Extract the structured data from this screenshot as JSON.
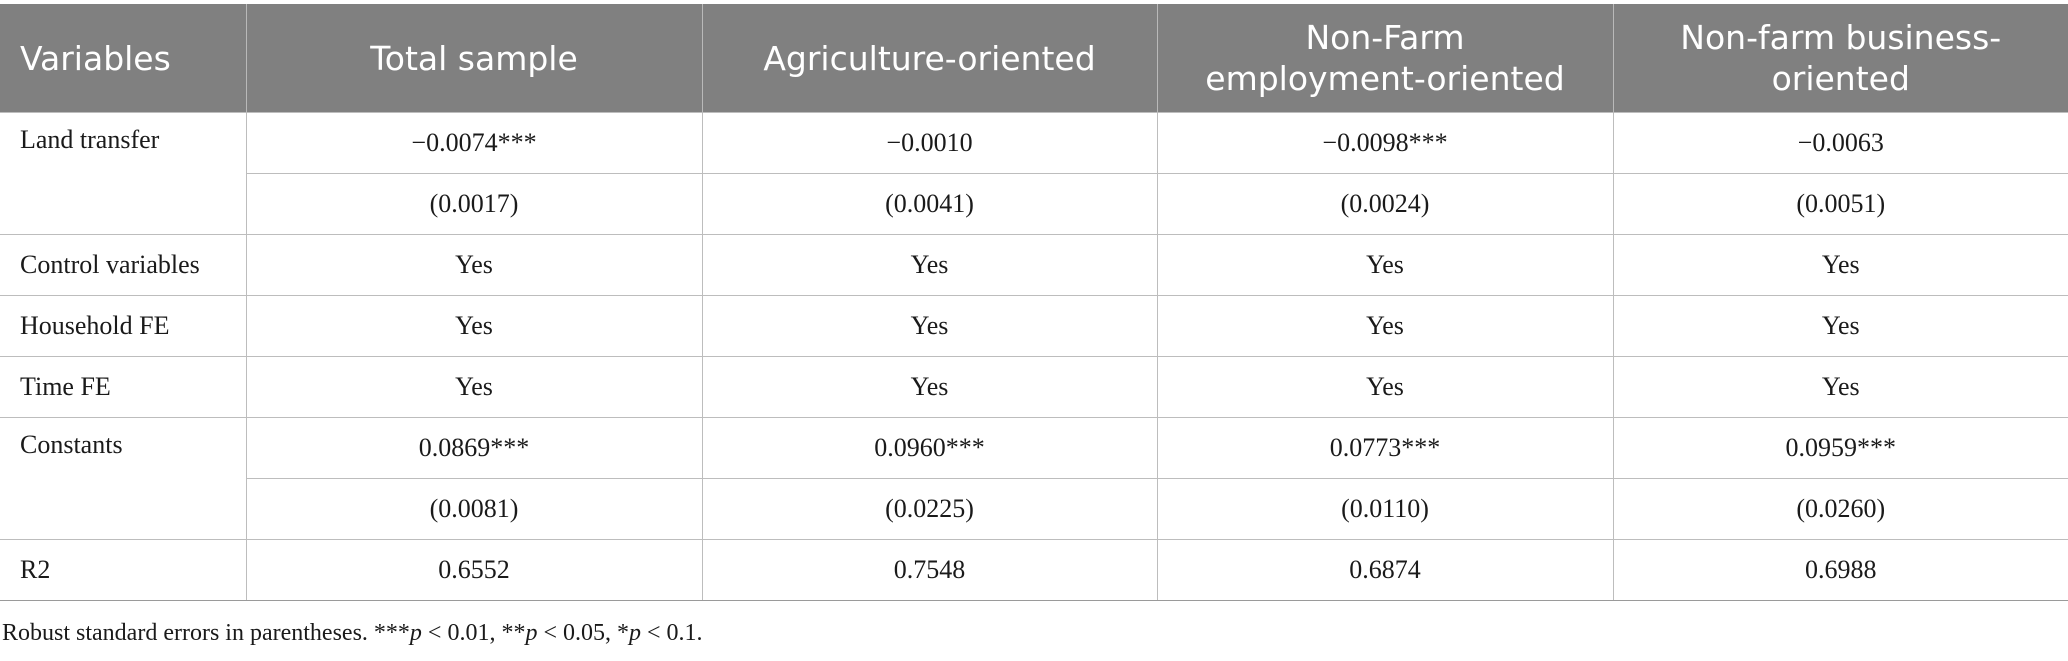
{
  "table": {
    "headers": [
      "Variables",
      "Total sample",
      "Agriculture-oriented",
      "Non-Farm employment-oriented",
      "Non-farm business-oriented"
    ],
    "header_lines": {
      "c3a": "Non-Farm",
      "c3b": "employment-oriented",
      "c4a": "Non-farm business-",
      "c4b": "oriented"
    },
    "rows": {
      "land_transfer": {
        "label": "Land transfer",
        "coef": [
          "−0.0074***",
          "−0.0010",
          "−0.0098***",
          "−0.0063"
        ],
        "se": [
          "(0.0017)",
          "(0.0041)",
          "(0.0024)",
          "(0.0051)"
        ]
      },
      "control_variables": {
        "label": "Control variables",
        "values": [
          "Yes",
          "Yes",
          "Yes",
          "Yes"
        ]
      },
      "household_fe": {
        "label": "Household FE",
        "values": [
          "Yes",
          "Yes",
          "Yes",
          "Yes"
        ]
      },
      "time_fe": {
        "label": "Time FE",
        "values": [
          "Yes",
          "Yes",
          "Yes",
          "Yes"
        ]
      },
      "constants": {
        "label": "Constants",
        "coef": [
          "0.0869***",
          "0.0960***",
          "0.0773***",
          "0.0959***"
        ],
        "se": [
          "(0.0081)",
          "(0.0225)",
          "(0.0110)",
          "(0.0260)"
        ]
      },
      "r2": {
        "label": "R2",
        "values": [
          "0.6552",
          "0.7548",
          "0.6874",
          "0.6988"
        ]
      }
    }
  },
  "footnote": {
    "lead": "Robust standard errors in parentheses. ***",
    "p1": "p",
    "t1": " < 0.01, **",
    "p2": "p",
    "t2": " < 0.05, *",
    "p3": "p",
    "t3": " < 0.1."
  }
}
